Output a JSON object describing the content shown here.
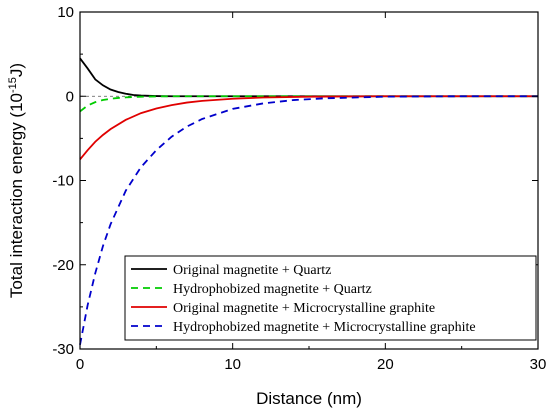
{
  "chart_data": {
    "type": "line",
    "xlabel": "Distance (nm)",
    "ylabel": {
      "main": "Total  interaction energy  (10",
      "sup": "-15",
      "unit": "J)"
    },
    "xlim": [
      0,
      30
    ],
    "ylim": [
      -30,
      10
    ],
    "x_ticks": [
      0,
      10,
      20,
      30
    ],
    "y_ticks": [
      -30,
      -20,
      -10,
      0,
      10
    ],
    "grid": false,
    "legend_position": "bottom-right",
    "series": [
      {
        "name": "Original magnetite + Quartz",
        "color": "#000000",
        "style": "solid",
        "x": [
          0,
          0.5,
          1,
          1.5,
          2,
          2.5,
          3,
          3.5,
          4,
          5,
          6,
          8,
          10,
          15,
          20,
          25,
          30
        ],
        "y": [
          4.5,
          3.3,
          2.0,
          1.3,
          0.8,
          0.5,
          0.3,
          0.15,
          0.08,
          0.02,
          0,
          0,
          0,
          0,
          0,
          0,
          0
        ]
      },
      {
        "name": "Hydrophobized magnetite + Quartz",
        "color": "#00cc00",
        "style": "dashed",
        "x": [
          0,
          0.5,
          1,
          1.5,
          2,
          2.5,
          3,
          4,
          5,
          6,
          8,
          10,
          15,
          20,
          25,
          30
        ],
        "y": [
          -1.8,
          -1.1,
          -0.7,
          -0.45,
          -0.3,
          -0.2,
          -0.13,
          -0.05,
          -0.02,
          0,
          0,
          0,
          0,
          0,
          0,
          0
        ]
      },
      {
        "name": "Original magnetite + Microcrystalline graphite",
        "color": "#e00000",
        "style": "solid",
        "x": [
          0,
          0.5,
          1,
          1.5,
          2,
          3,
          4,
          5,
          6,
          7,
          8,
          10,
          12,
          15,
          20,
          25,
          30
        ],
        "y": [
          -7.5,
          -6.4,
          -5.4,
          -4.6,
          -3.9,
          -2.8,
          -2.0,
          -1.45,
          -1.05,
          -0.75,
          -0.55,
          -0.3,
          -0.15,
          -0.05,
          0,
          0,
          0
        ]
      },
      {
        "name": "Hydrophobized magnetite + Microcrystalline graphite",
        "color": "#0000cc",
        "style": "dashed",
        "x": [
          0,
          0.5,
          1,
          1.5,
          2,
          3,
          4,
          5,
          6,
          7,
          8,
          10,
          12,
          14,
          16,
          20,
          25,
          30
        ],
        "y": [
          -29.5,
          -24.8,
          -21.0,
          -17.8,
          -15.2,
          -11.2,
          -8.4,
          -6.4,
          -4.8,
          -3.6,
          -2.7,
          -1.5,
          -0.85,
          -0.45,
          -0.25,
          -0.05,
          0,
          0
        ]
      }
    ]
  }
}
